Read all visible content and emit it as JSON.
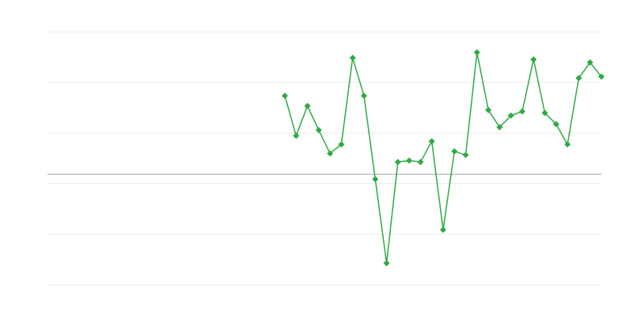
{
  "chart_data": {
    "type": "line",
    "title": "",
    "xlabel": "",
    "ylabel": "",
    "grid": true,
    "ylim": [
      0,
      5
    ],
    "yticks": [
      0,
      1,
      2,
      3,
      4,
      5
    ],
    "baseline": 2.19,
    "x_count": 50,
    "color": "#2eaa44",
    "marker": "diamond",
    "series": [
      {
        "values": [
          null,
          null,
          null,
          null,
          null,
          null,
          null,
          null,
          null,
          null,
          null,
          null,
          null,
          null,
          null,
          null,
          null,
          null,
          null,
          null,
          null,
          3.73,
          2.94,
          3.53,
          3.05,
          2.59,
          2.77,
          4.48,
          3.73,
          2.08,
          0.42,
          2.42,
          2.45,
          2.42,
          2.83,
          1.08,
          2.63,
          2.56,
          4.59,
          3.45,
          3.11,
          3.34,
          3.42,
          4.45,
          3.39,
          3.17,
          2.77,
          4.08,
          4.39,
          4.11
        ]
      }
    ]
  }
}
